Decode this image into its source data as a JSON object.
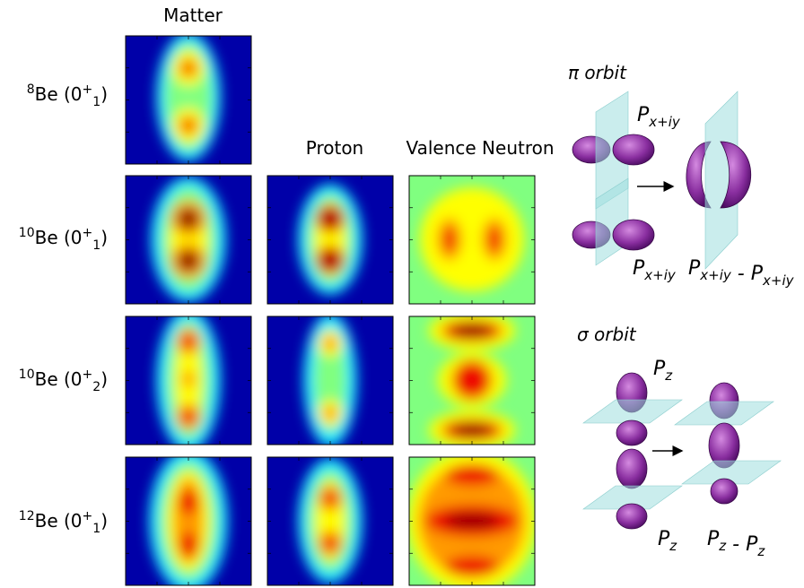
{
  "columns": {
    "matter": "Matter",
    "proton": "Proton",
    "valence_neutron": "Valence Neutron"
  },
  "rows": [
    {
      "prefix": "8",
      "body": "Be (0",
      "sup": "+",
      "sub": "1",
      "suffix": ")"
    },
    {
      "prefix": "10",
      "body": "Be (0",
      "sup": "+",
      "sub": "1",
      "suffix": ")"
    },
    {
      "prefix": "10",
      "body": "Be (0",
      "sup": "+",
      "sub": "2",
      "suffix": ")"
    },
    {
      "prefix": "12",
      "body": "Be (0",
      "sup": "+",
      "sub": "1",
      "suffix": ")"
    }
  ],
  "pi_orbit": {
    "title": "π orbit",
    "top": {
      "base": "P",
      "sub": "x+iy"
    },
    "bottom": {
      "base": "P",
      "sub": "x+iy"
    },
    "result": {
      "left": {
        "base": "P",
        "sub": "x+iy"
      },
      "operator": " - ",
      "right": {
        "base": "P",
        "sub": "x+iy"
      }
    }
  },
  "sigma_orbit": {
    "title": "σ orbit",
    "top": {
      "base": "P",
      "sub": "z"
    },
    "bottom": {
      "base": "P",
      "sub": "z"
    },
    "result": {
      "left": {
        "base": "P",
        "sub": "z"
      },
      "operator": " - ",
      "right": {
        "base": "P",
        "sub": "z"
      }
    }
  }
}
